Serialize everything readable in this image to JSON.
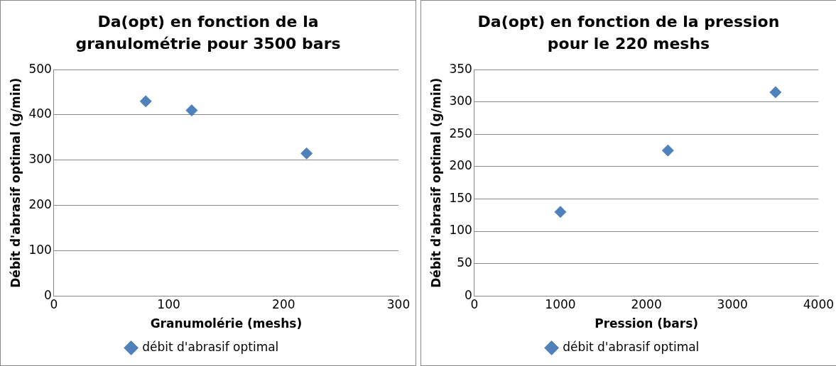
{
  "chart_data": [
    {
      "type": "scatter",
      "title": "Da(opt) en fonction de la granulométrie pour 3500 bars",
      "xlabel": "Granumolérie (meshs)",
      "ylabel": "Débit d'abrasif optimal (g/min)",
      "x": [
        80,
        120,
        220
      ],
      "series": [
        {
          "name": "débit d'abrasif optimal",
          "color": "#4f81bd",
          "values": [
            430,
            410,
            315
          ]
        }
      ],
      "xlim": [
        0,
        300
      ],
      "xticks": [
        0,
        100,
        200,
        300
      ],
      "ylim": [
        0,
        500
      ],
      "yticks": [
        0,
        100,
        200,
        300,
        400,
        500
      ],
      "grid": "y",
      "legend": "bottom",
      "marker": "diamond"
    },
    {
      "type": "scatter",
      "title": "Da(opt) en fonction de la pression pour le 220 meshs",
      "xlabel": "Pression (bars)",
      "ylabel": "Débit d'abrasif optimal (g/min)",
      "x": [
        1000,
        2250,
        3500
      ],
      "series": [
        {
          "name": "débit d'abrasif optimal",
          "color": "#4f81bd",
          "values": [
            130,
            225,
            315
          ]
        }
      ],
      "xlim": [
        0,
        4000
      ],
      "xticks": [
        0,
        1000,
        2000,
        3000,
        4000
      ],
      "ylim": [
        0,
        350
      ],
      "yticks": [
        0,
        50,
        100,
        150,
        200,
        250,
        300,
        350
      ],
      "grid": "y",
      "legend": "bottom",
      "marker": "diamond"
    }
  ]
}
